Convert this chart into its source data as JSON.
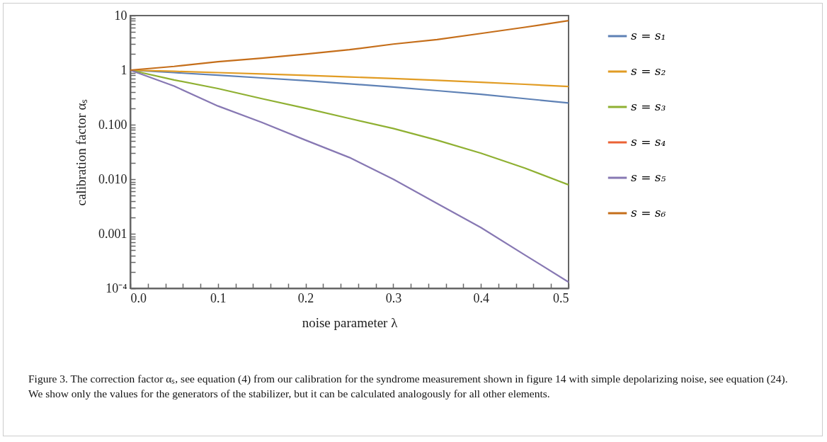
{
  "chart_data": {
    "type": "line",
    "xlabel": "noise parameter λ",
    "ylabel": "calibration factor αₛ",
    "x": [
      0,
      0.05,
      0.1,
      0.15,
      0.2,
      0.25,
      0.3,
      0.35,
      0.4,
      0.45,
      0.5
    ],
    "series": [
      {
        "name": "s = s₁",
        "color": "#5e81b5",
        "values": [
          1,
          0.9,
          0.81,
          0.72,
          0.64,
          0.56,
          0.49,
          0.42,
          0.36,
          0.3,
          0.25
        ]
      },
      {
        "name": "s = s₂",
        "color": "#e19c24",
        "values": [
          1,
          0.95,
          0.9,
          0.85,
          0.8,
          0.75,
          0.7,
          0.65,
          0.6,
          0.55,
          0.5
        ]
      },
      {
        "name": "s = s₃",
        "color": "#8fb032",
        "values": [
          1,
          0.66,
          0.46,
          0.3,
          0.2,
          0.13,
          0.085,
          0.052,
          0.03,
          0.016,
          0.0079
        ]
      },
      {
        "name": "s = s₄",
        "color": "#eb6235",
        "values": [
          null,
          null,
          null,
          null,
          null,
          null,
          null,
          null,
          null,
          null,
          null
        ]
      },
      {
        "name": "s = s₅",
        "color": "#8778b3",
        "values": [
          1,
          0.51,
          0.22,
          0.11,
          0.052,
          0.025,
          0.01,
          0.0036,
          0.0013,
          0.00041,
          0.00013
        ]
      },
      {
        "name": "s = s₆",
        "color": "#c56e1a",
        "values": [
          1,
          1.17,
          1.43,
          1.66,
          1.97,
          2.37,
          3,
          3.64,
          4.7,
          6.1,
          8.1
        ]
      }
    ],
    "log": "y",
    "xlim": [
      0,
      0.5
    ],
    "ylim": [
      0.0001,
      10
    ],
    "xticks": [
      {
        "value": 0,
        "label": "0.0"
      },
      {
        "value": 0.02,
        "label": null
      },
      {
        "value": 0.04,
        "label": null
      },
      {
        "value": 0.06,
        "label": null
      },
      {
        "value": 0.08,
        "label": null
      },
      0.1,
      {
        "value": 0.12,
        "label": null
      },
      {
        "value": 0.14,
        "label": null
      },
      {
        "value": 0.16,
        "label": null
      },
      {
        "value": 0.18,
        "label": null
      },
      0.2,
      {
        "value": 0.22,
        "label": null
      },
      {
        "value": 0.24,
        "label": null
      },
      {
        "value": 0.26,
        "label": null
      },
      {
        "value": 0.28,
        "label": null
      },
      0.3,
      {
        "value": 0.32,
        "label": null
      },
      {
        "value": 0.34,
        "label": null
      },
      {
        "value": 0.36,
        "label": null
      },
      {
        "value": 0.38,
        "label": null
      },
      0.4,
      {
        "value": 0.42,
        "label": null
      },
      {
        "value": 0.44,
        "label": null
      },
      {
        "value": 0.46,
        "label": null
      },
      {
        "value": 0.48,
        "label": null
      },
      0.5
    ],
    "yticks": [
      {
        "value": 0.0001,
        "label": "10⁻⁴"
      },
      {
        "value": 0.0002,
        "label": null
      },
      {
        "value": 0.0003,
        "label": null
      },
      {
        "value": 0.0004,
        "label": null
      },
      {
        "value": 0.0005,
        "label": null
      },
      {
        "value": 0.0006,
        "label": null
      },
      {
        "value": 0.0007,
        "label": null
      },
      {
        "value": 0.0008,
        "label": null
      },
      {
        "value": 0.0009,
        "label": null
      },
      0.001,
      {
        "value": 0.002,
        "label": null
      },
      {
        "value": 0.003,
        "label": null
      },
      {
        "value": 0.004,
        "label": null
      },
      {
        "value": 0.005,
        "label": null
      },
      {
        "value": 0.006,
        "label": null
      },
      {
        "value": 0.007,
        "label": null
      },
      {
        "value": 0.008,
        "label": null
      },
      {
        "value": 0.009,
        "label": null
      },
      {
        "value": 0.01,
        "label": "0.010"
      },
      {
        "value": 0.02,
        "label": null
      },
      {
        "value": 0.03,
        "label": null
      },
      {
        "value": 0.04,
        "label": null
      },
      {
        "value": 0.05,
        "label": null
      },
      {
        "value": 0.06,
        "label": null
      },
      {
        "value": 0.07,
        "label": null
      },
      {
        "value": 0.08,
        "label": null
      },
      {
        "value": 0.09,
        "label": null
      },
      {
        "value": 0.1,
        "label": "0.100"
      },
      {
        "value": 0.2,
        "label": null
      },
      {
        "value": 0.3,
        "label": null
      },
      {
        "value": 0.4,
        "label": null
      },
      {
        "value": 0.5,
        "label": null
      },
      {
        "value": 0.6,
        "label": null
      },
      {
        "value": 0.7,
        "label": null
      },
      {
        "value": 0.8,
        "label": null
      },
      {
        "value": 0.9,
        "label": null
      },
      1,
      {
        "value": 2,
        "label": null
      },
      {
        "value": 3,
        "label": null
      },
      {
        "value": 4,
        "label": null
      },
      {
        "value": 5,
        "label": null
      },
      {
        "value": 6,
        "label": null
      },
      {
        "value": 7,
        "label": null
      },
      {
        "value": 8,
        "label": null
      },
      {
        "value": 9,
        "label": null
      },
      10
    ],
    "grid": false,
    "legend": "right",
    "marker": "none",
    "line_style": "solid",
    "annotations": [
      "Figure 3. The correction factor αₛ, see equation (4) from our calibration for the syndrome measurement shown in figure 14 with simple depolarizing noise, see equation (24). We show only the values for the generators of the stabilizer, but it can be calculated analogously for all other elements."
    ]
  }
}
